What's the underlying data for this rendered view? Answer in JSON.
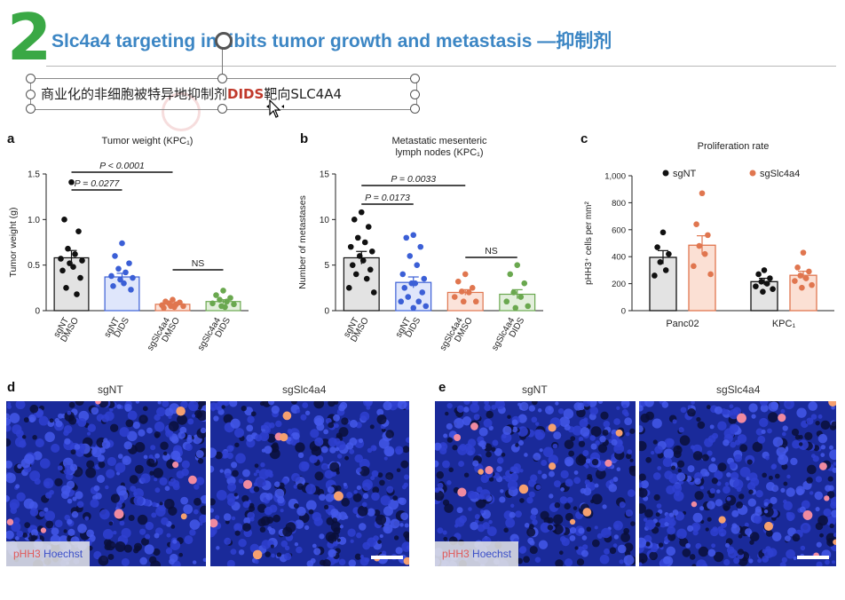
{
  "slide": {
    "number": "2",
    "title": "Slc4a4 targeting inhibits tumor growth and metastasis —抑制剂",
    "textbox": {
      "prefix": "商业化的非细胞被特异地抑制剂",
      "highlight": "DIDS",
      "suffix": "靶向SLC4A4"
    }
  },
  "panels": {
    "a": {
      "letter": "a",
      "title": "Tumor weight (KPC₁)"
    },
    "b": {
      "letter": "b",
      "title_line1": "Metastatic mesenteric",
      "title_line2": "lymph nodes (KPC₁)"
    },
    "c": {
      "letter": "c",
      "title": "Proliferation rate"
    },
    "d": {
      "letter": "d",
      "label_left": "sgNT",
      "label_right": "sgSlc4a4",
      "stain_red": "pHH3",
      "stain_blue": "Hoechst"
    },
    "e": {
      "letter": "e",
      "label_left": "sgNT",
      "label_right": "sgSlc4a4",
      "stain_red": "pHH3",
      "stain_blue": "Hoechst"
    }
  },
  "colors": {
    "title": "#3c86c4",
    "number": "#3aa845",
    "black": "#111111",
    "blue": "#3b5fd6",
    "orange": "#e0764f",
    "green": "#6aa84f",
    "highlight": "#c0392b"
  },
  "chart_data": [
    {
      "type": "bar",
      "title": "Tumor weight (KPC₁)",
      "ylabel": "Tumor weight (g)",
      "ylim": [
        0,
        1.5
      ],
      "yticks": [
        "0",
        "0.5",
        "1.0",
        "1.5"
      ],
      "categories": [
        "sgNT DMSO",
        "sgNT DIDS",
        "sgSlc4a4 DMSO",
        "sgSlc4a4 DIDS"
      ],
      "category_lines": [
        [
          "sgNT",
          "DMSO"
        ],
        [
          "sgNT",
          "DIDS"
        ],
        [
          "sgSlc4a4",
          "DMSO"
        ],
        [
          "sgSlc4a4",
          "DIDS"
        ]
      ],
      "values": [
        0.58,
        0.37,
        0.07,
        0.1
      ],
      "errors": [
        0.08,
        0.04,
        0.01,
        0.02
      ],
      "series_colors": [
        "#111111",
        "#3b5fd6",
        "#e0764f",
        "#6aa84f"
      ],
      "points": [
        [
          1.41,
          1.0,
          0.87,
          0.68,
          0.62,
          0.57,
          0.55,
          0.52,
          0.48,
          0.44,
          0.36,
          0.25,
          0.18
        ],
        [
          0.74,
          0.6,
          0.52,
          0.46,
          0.42,
          0.38,
          0.36,
          0.34,
          0.3,
          0.27,
          0.23
        ],
        [
          0.12,
          0.1,
          0.09,
          0.08,
          0.07,
          0.06,
          0.05,
          0.05,
          0.04,
          0.03
        ],
        [
          0.22,
          0.17,
          0.14,
          0.12,
          0.1,
          0.08,
          0.07,
          0.05,
          0.04
        ]
      ],
      "annotations": [
        {
          "text": "P < 0.0001",
          "from": 0,
          "to": 2
        },
        {
          "text": "P = 0.0277",
          "from": 0,
          "to": 1
        },
        {
          "text": "NS",
          "from": 2,
          "to": 3
        }
      ]
    },
    {
      "type": "bar",
      "title": "Metastatic mesenteric lymph nodes (KPC₁)",
      "ylabel": "Number of metastases",
      "ylim": [
        0,
        15
      ],
      "yticks": [
        "0",
        "5",
        "10",
        "15"
      ],
      "categories": [
        "sgNT DMSO",
        "sgNT DIDS",
        "sgSlc4a4 DMSO",
        "sgSlc4a4 DIDS"
      ],
      "category_lines": [
        [
          "sgNT",
          "DMSO"
        ],
        [
          "sgNT",
          "DIDS"
        ],
        [
          "sgSlc4a4",
          "DMSO"
        ],
        [
          "sgSlc4a4",
          "DIDS"
        ]
      ],
      "values": [
        5.8,
        3.1,
        2.0,
        1.8
      ],
      "errors": [
        0.7,
        0.6,
        0.3,
        0.5
      ],
      "series_colors": [
        "#111111",
        "#3b5fd6",
        "#e0764f",
        "#6aa84f"
      ],
      "points": [
        [
          10.8,
          10.0,
          9.2,
          8.0,
          7.5,
          7.0,
          6.5,
          6.0,
          5.5,
          5.0,
          4.5,
          4.0,
          3.5,
          2.5,
          2.0
        ],
        [
          8.3,
          8.0,
          7.0,
          6.0,
          5.0,
          4.0,
          3.5,
          3.0,
          3.0,
          2.5,
          2.0,
          1.5,
          1.0,
          1.0,
          0.5,
          0.3
        ],
        [
          4.0,
          3.2,
          2.5,
          2.1,
          2.0,
          1.5,
          1.0,
          1.0
        ],
        [
          5.0,
          4.0,
          3.0,
          2.0,
          1.5,
          1.0,
          0.5,
          0.3
        ]
      ],
      "annotations": [
        {
          "text": "P = 0.0033",
          "from": 0,
          "to": 2
        },
        {
          "text": "P = 0.0173",
          "from": 0,
          "to": 1
        },
        {
          "text": "NS",
          "from": 2,
          "to": 3
        }
      ]
    },
    {
      "type": "bar",
      "title": "Proliferation rate",
      "ylabel": "pHH3⁺ cells per mm²",
      "ylim": [
        0,
        1000
      ],
      "yticks": [
        "0",
        "200",
        "400",
        "600",
        "800",
        "1,000"
      ],
      "categories": [
        "Panc02",
        "KPC₁"
      ],
      "legend": [
        "sgNT",
        "sgSlc4a4"
      ],
      "legend_placement": "top",
      "series": [
        {
          "name": "sgNT",
          "color": "#111111",
          "values": [
            395,
            215
          ],
          "errors": [
            50,
            25
          ],
          "points": [
            [
              580,
              470,
              420,
              360,
              300,
              260
            ],
            [
              300,
              270,
              240,
              215,
              200,
              180,
              160,
              140
            ]
          ]
        },
        {
          "name": "sgSlc4a4",
          "color": "#e0764f",
          "values": [
            485,
            262
          ],
          "errors": [
            70,
            30
          ],
          "points": [
            [
              870,
              640,
              560,
              480,
              420,
              330,
              270
            ],
            [
              430,
              320,
              290,
              260,
              240,
              220,
              190,
              170
            ]
          ]
        }
      ]
    }
  ]
}
